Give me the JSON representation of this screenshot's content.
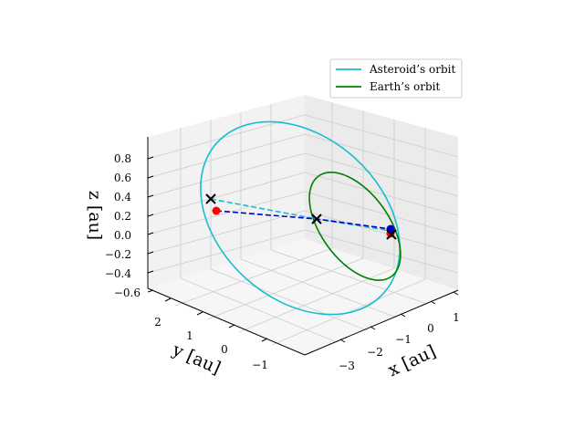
{
  "chart_data": {
    "type": "line-3d",
    "title": "",
    "axes": {
      "x": {
        "label": "x [au]",
        "ticks": [
          "−3",
          "−2",
          "−1",
          "0",
          "1"
        ]
      },
      "y": {
        "label": "y [au]",
        "ticks": [
          "2",
          "1",
          "0",
          "−1"
        ]
      },
      "z": {
        "label": "z [au]",
        "ticks": [
          "0.8",
          "0.6",
          "0.4",
          "0.2",
          "0.0",
          "−0.2",
          "−0.4",
          "−0.6"
        ]
      }
    },
    "grid": true,
    "legend_position": "top-right",
    "series": [
      {
        "name": "Asteroid’s orbit",
        "color": "#17becf",
        "kind": "orbit"
      },
      {
        "name": "Earth’s orbit",
        "color": "#008000",
        "kind": "orbit"
      }
    ],
    "connectors": [
      {
        "color": "#17becf",
        "style": "dashed"
      },
      {
        "color": "#0000cd",
        "style": "dashed"
      }
    ],
    "markers": [
      {
        "color": "#ff0000",
        "symbol": "dot"
      },
      {
        "color": "#0000cd",
        "symbol": "dot"
      },
      {
        "color": "#000000",
        "symbol": "x"
      }
    ]
  }
}
